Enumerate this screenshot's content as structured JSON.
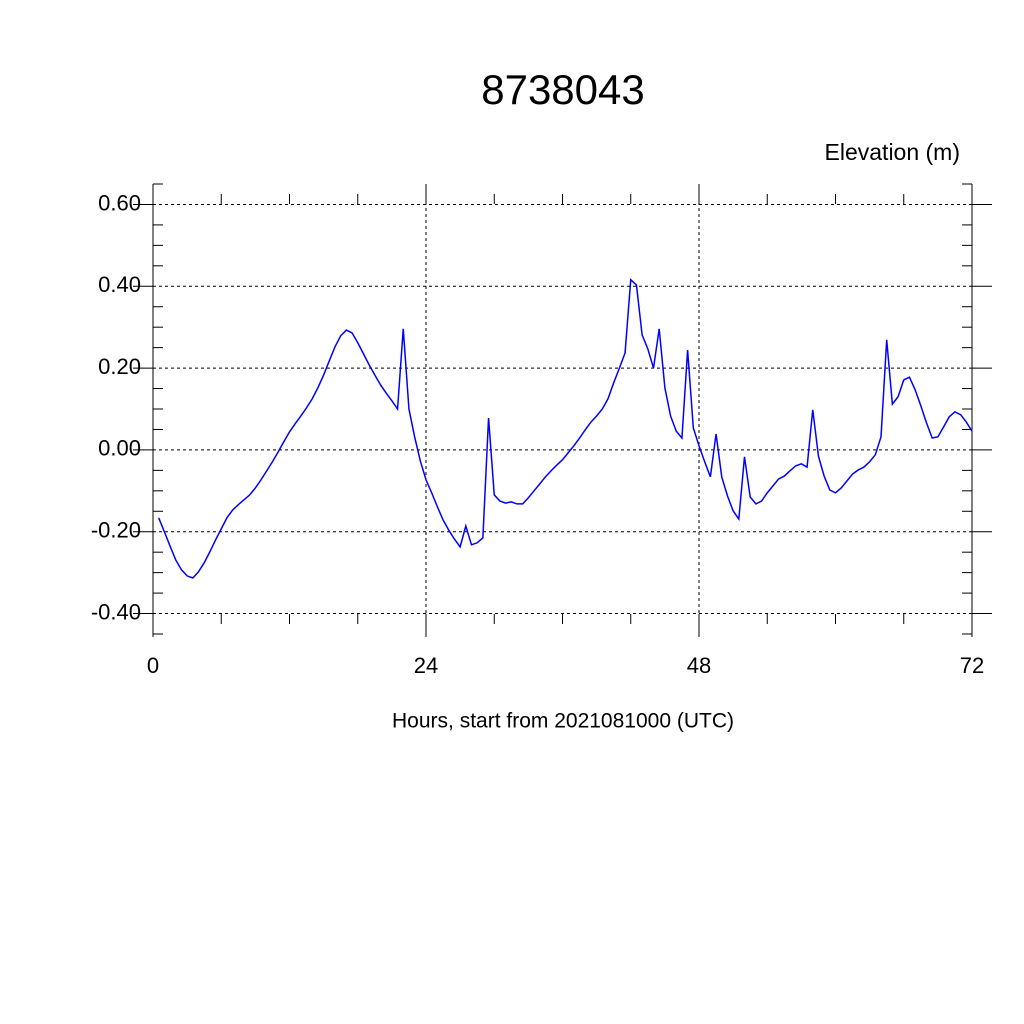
{
  "chart_data": {
    "type": "line",
    "title": "8738043",
    "ylabel": "Elevation (m)",
    "xlabel": "Hours, start from 2021081000 (UTC)",
    "xlim": [
      0,
      72
    ],
    "ylim": [
      -0.45,
      0.65
    ],
    "grid": true,
    "xticks": [
      0,
      24,
      48,
      72
    ],
    "yticks": [
      {
        "value": 0.6,
        "label": "0.60"
      },
      {
        "value": 0.4,
        "label": "0.40"
      },
      {
        "value": 0.2,
        "label": "0.20"
      },
      {
        "value": 0,
        "label": "0.00"
      },
      {
        "value": -0.2,
        "label": "-0.20"
      },
      {
        "value": -0.4,
        "label": "-0.40"
      }
    ],
    "xminorticks": [
      6,
      12,
      18,
      30,
      36,
      42,
      54,
      60,
      66
    ],
    "yminorticks": [
      -0.45,
      -0.35,
      -0.3,
      -0.25,
      -0.15,
      -0.1,
      -0.05,
      0.05,
      0.1,
      0.15,
      0.25,
      0.3,
      0.35,
      0.45,
      0.5,
      0.55,
      0.65
    ],
    "x": [
      0.5,
      1,
      1.5,
      2,
      2.5,
      3,
      3.5,
      4,
      4.5,
      5,
      5.5,
      6,
      6.5,
      7,
      7.5,
      8,
      8.5,
      9,
      9.5,
      10,
      10.5,
      11,
      11.5,
      12,
      12.5,
      13,
      13.5,
      14,
      14.5,
      15,
      15.5,
      16,
      16.5,
      17,
      17.5,
      18,
      18.5,
      19,
      19.5,
      20,
      20.5,
      21,
      21.5,
      22,
      22.5,
      23,
      23.5,
      24,
      24.5,
      25,
      25.5,
      26,
      26.5,
      27,
      27.5,
      28,
      28.5,
      29,
      29.5,
      30,
      30.5,
      31,
      31.5,
      32,
      32.5,
      33,
      33.5,
      34,
      34.5,
      35,
      35.5,
      36,
      36.5,
      37,
      37.5,
      38,
      38.5,
      39,
      39.5,
      40,
      40.5,
      41,
      41.5,
      42,
      42.5,
      43,
      43.5,
      44,
      44.5,
      45,
      45.5,
      46,
      46.5,
      47,
      47.5,
      48,
      48.5,
      49,
      49.5,
      50,
      50.5,
      51,
      51.5,
      52,
      52.5,
      53,
      53.5,
      54,
      54.5,
      55,
      55.5,
      56,
      56.5,
      57,
      57.5,
      58,
      58.5,
      59,
      59.5,
      60,
      60.5,
      61,
      61.5,
      62,
      62.5,
      63,
      63.5,
      64,
      64.5,
      65,
      65.5,
      66,
      66.5,
      67,
      67.5,
      68,
      68.5,
      69,
      69.5,
      70,
      70.5,
      71,
      71.5,
      72
    ],
    "series": [
      {
        "name": "Elevation",
        "color": "#0000ff",
        "values": [
          -0.166,
          -0.2,
          -0.235,
          -0.269,
          -0.293,
          -0.308,
          -0.313,
          -0.298,
          -0.276,
          -0.249,
          -0.22,
          -0.193,
          -0.166,
          -0.147,
          -0.134,
          -0.122,
          -0.11,
          -0.093,
          -0.073,
          -0.051,
          -0.029,
          -0.005,
          0.02,
          0.044,
          0.064,
          0.083,
          0.103,
          0.125,
          0.152,
          0.183,
          0.218,
          0.252,
          0.279,
          0.293,
          0.286,
          0.262,
          0.235,
          0.208,
          0.183,
          0.159,
          0.139,
          0.12,
          0.1,
          0.296,
          0.1,
          0.032,
          -0.027,
          -0.073,
          -0.105,
          -0.139,
          -0.171,
          -0.196,
          -0.218,
          -0.237,
          -0.186,
          -0.232,
          -0.227,
          -0.215,
          0.078,
          -0.11,
          -0.125,
          -0.13,
          -0.127,
          -0.132,
          -0.132,
          -0.117,
          -0.1,
          -0.083,
          -0.066,
          -0.051,
          -0.037,
          -0.024,
          -0.007,
          0.01,
          0.029,
          0.049,
          0.068,
          0.083,
          0.1,
          0.125,
          0.164,
          0.2,
          0.237,
          0.416,
          0.403,
          0.281,
          0.247,
          0.2,
          0.296,
          0.152,
          0.083,
          0.046,
          0.029,
          0.244,
          0.054,
          0.01,
          -0.029,
          -0.066,
          0.039,
          -0.066,
          -0.112,
          -0.149,
          -0.169,
          -0.017,
          -0.115,
          -0.132,
          -0.125,
          -0.105,
          -0.088,
          -0.071,
          -0.064,
          -0.051,
          -0.039,
          -0.034,
          -0.042,
          0.098,
          -0.015,
          -0.064,
          -0.098,
          -0.105,
          -0.093,
          -0.076,
          -0.059,
          -0.049,
          -0.042,
          -0.029,
          -0.012,
          0.032,
          0.269,
          0.112,
          0.13,
          0.171,
          0.178,
          0.147,
          0.108,
          0.066,
          0.029,
          0.032,
          0.056,
          0.081,
          0.093,
          0.086,
          0.068,
          0.046
        ]
      }
    ]
  }
}
